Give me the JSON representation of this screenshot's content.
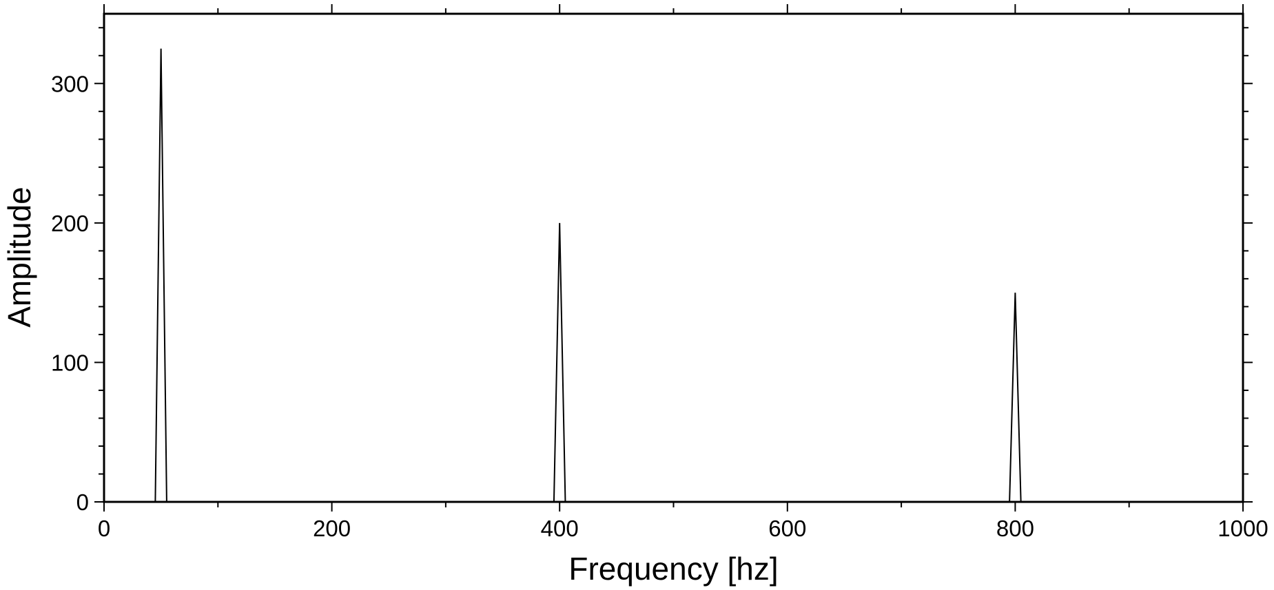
{
  "chart_data": {
    "type": "line",
    "title": "",
    "xlabel": "Frequency [hz]",
    "ylabel": "Amplitude",
    "xlim": [
      0,
      1000
    ],
    "ylim": [
      0,
      350
    ],
    "x_ticks": [
      0,
      200,
      400,
      600,
      800,
      1000
    ],
    "x_tick_labels": [
      "0",
      "200",
      "400",
      "600",
      "800",
      "1000"
    ],
    "x_minor_step": 100,
    "y_ticks": [
      0,
      100,
      200,
      300
    ],
    "y_tick_labels": [
      "0",
      "100",
      "200",
      "300"
    ],
    "y_minor_step": 20,
    "grid": false,
    "line_color": "#000000",
    "series": [
      {
        "x": [
          0,
          45,
          50,
          55,
          395,
          400,
          405,
          795,
          800,
          805,
          1000
        ],
        "y": [
          0,
          0,
          325,
          0,
          0,
          200,
          0,
          0,
          150,
          0,
          0
        ]
      }
    ]
  }
}
